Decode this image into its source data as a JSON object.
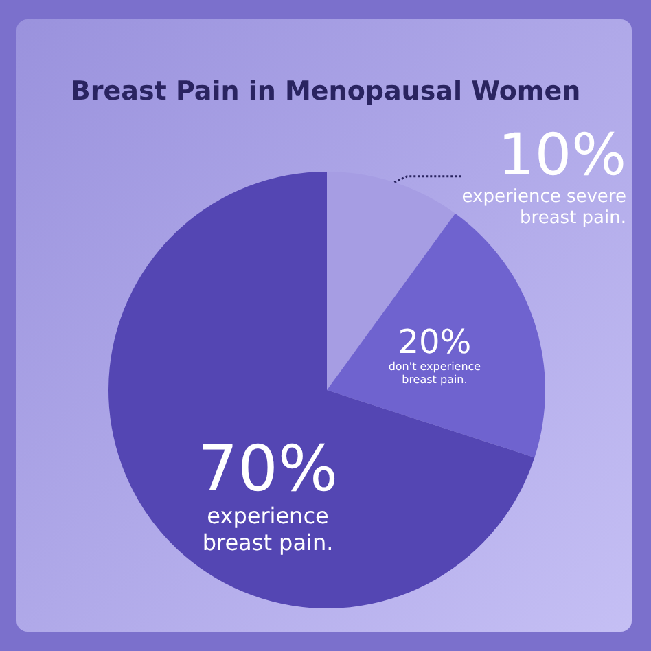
{
  "chart_data": {
    "type": "pie",
    "title": "Breast Pain in Menopausal Women",
    "categories": [
      "experience severe breast pain.",
      "don't experience breast pain.",
      "experience breast pain."
    ],
    "values": [
      10,
      20,
      70
    ],
    "value_labels": [
      "10%",
      "20%",
      "70%"
    ],
    "colors": [
      "#a69de3",
      "#6f63cf",
      "#5446b3"
    ],
    "legend": false
  }
}
